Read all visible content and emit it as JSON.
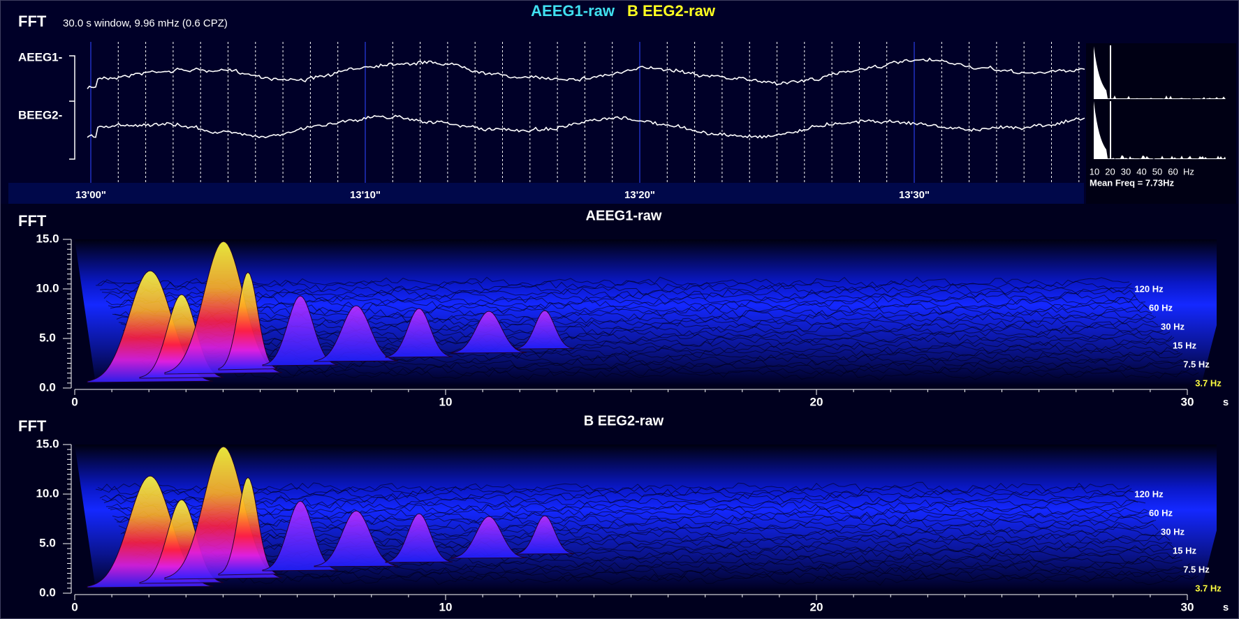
{
  "header": {
    "label": "FFT",
    "info": "30.0 s window, 9.96 mHz (0.6 CPZ)",
    "legend": [
      "AEEG1-raw",
      "B EEG2-raw"
    ]
  },
  "traces": {
    "channels": [
      "AEEG1-",
      "BEEG2-"
    ],
    "time_labels": [
      "13'00\"",
      "13'10\"",
      "13'20\"",
      "13'30\""
    ]
  },
  "spectrum": {
    "x_labels": [
      "10",
      "20",
      "30",
      "40",
      "50",
      "60",
      "Hz"
    ],
    "mean_freq": "Mean Freq = 7.73Hz"
  },
  "panels": [
    {
      "label": "FFT",
      "title": "AEEG1-raw",
      "y_labels": [
        "15.0",
        "10.0",
        "5.0",
        "0.0"
      ],
      "x_labels": [
        "0",
        "10",
        "20",
        "30"
      ],
      "x_unit": "s",
      "freq_labels": [
        "120 Hz",
        "60 Hz",
        "30 Hz",
        "15 Hz",
        "7.5 Hz",
        "3.7 Hz"
      ]
    },
    {
      "label": "FFT",
      "title": "B EEG2-raw",
      "y_labels": [
        "15.0",
        "10.0",
        "5.0",
        "0.0"
      ],
      "x_labels": [
        "0",
        "10",
        "20",
        "30"
      ],
      "x_unit": "s",
      "freq_labels": [
        "120 Hz",
        "60 Hz",
        "30 Hz",
        "15 Hz",
        "7.5 Hz",
        "3.7 Hz"
      ]
    }
  ]
}
